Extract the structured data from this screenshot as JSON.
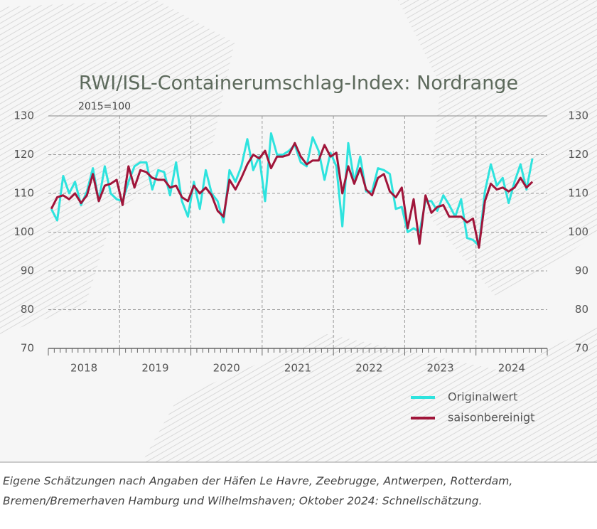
{
  "chart_data": {
    "type": "line",
    "title": "RWI/ISL-Containerumschlag-Index: Nordrange",
    "subtitle": "2015=100",
    "categories": [
      null,
      null,
      null,
      null,
      null,
      "2018",
      null,
      null,
      null,
      null,
      null,
      null,
      null,
      null,
      null,
      null,
      null,
      "2019",
      null,
      null,
      null,
      null,
      null,
      null,
      null,
      null,
      null,
      null,
      null,
      "2020",
      null,
      null,
      null,
      null,
      null,
      null,
      null,
      null,
      null,
      null,
      null,
      "2021",
      null,
      null,
      null,
      null,
      null,
      null,
      null,
      null,
      null,
      null,
      null,
      "2022",
      null,
      null,
      null,
      null,
      null,
      null,
      null,
      null,
      null,
      null,
      null,
      "2023",
      null,
      null,
      null,
      null,
      null,
      null,
      null,
      null,
      null,
      null,
      null,
      "2024",
      null,
      null,
      null,
      null,
      null,
      null
    ],
    "series": [
      {
        "name": "Originalwert",
        "color": "#2ee3de",
        "values": [
          106,
          103,
          114.5,
          110,
          113,
          107,
          110.5,
          116.5,
          108,
          117,
          110,
          108.5,
          108,
          113,
          117,
          118,
          118,
          111,
          116,
          115.5,
          109.5,
          118,
          108,
          104,
          113,
          106,
          116,
          110,
          108,
          102.5,
          116,
          113,
          117,
          124,
          116,
          119.5,
          108,
          125.5,
          120,
          120,
          121,
          122.5,
          118,
          117,
          124.5,
          121,
          113.5,
          120.5,
          117,
          101.5,
          123,
          113,
          119.5,
          110.5,
          110.5,
          116.5,
          116,
          115,
          106,
          106.5,
          100,
          101,
          100,
          108,
          108,
          105.5,
          109.5,
          107,
          104,
          108.5,
          98.5,
          98,
          96.5,
          110.5,
          117.5,
          112,
          114,
          107.5,
          113,
          117.5,
          111,
          119,
          null,
          null
        ]
      },
      {
        "name": "saisonbereinigt",
        "color": "#a0153a",
        "values": [
          106,
          109,
          109.5,
          108.5,
          110,
          107.5,
          109.5,
          115,
          108,
          112,
          112.5,
          113.5,
          107,
          117,
          111.5,
          116,
          115.5,
          114,
          113.5,
          113.5,
          111.5,
          112,
          109,
          108,
          112,
          110,
          111.5,
          109.5,
          105.5,
          104,
          113.5,
          111,
          114,
          117.5,
          120,
          119,
          121,
          116.5,
          119.5,
          119.5,
          120,
          123,
          119.5,
          117.5,
          118.5,
          118.5,
          122.5,
          119.5,
          120.5,
          110,
          117,
          112.5,
          116.5,
          111,
          109.5,
          114,
          115,
          110.5,
          109,
          111.5,
          101,
          108.5,
          97,
          109.5,
          105,
          106.5,
          107,
          104,
          104,
          104,
          102.5,
          103.5,
          96,
          108,
          112.5,
          111,
          111.5,
          110.5,
          111.5,
          114,
          111.5,
          113,
          null,
          null
        ]
      }
    ],
    "ylim": [
      70,
      130
    ],
    "yticks": [
      70,
      80,
      90,
      100,
      110,
      120,
      130
    ],
    "y2lim": [
      70,
      130
    ],
    "y2ticks": [
      70,
      80,
      90,
      100,
      110,
      120,
      130
    ],
    "grid": true,
    "legend": "bottom-right",
    "note": [
      "Eigene Schätzungen nach Angaben der Häfen Le Havre, Zeebrugge, Antwerpen, Rotterdam,",
      "Bremen/Bremerhaven Hamburg und Wilhelmshaven; Oktober 2024: Schnellschätzung."
    ]
  }
}
